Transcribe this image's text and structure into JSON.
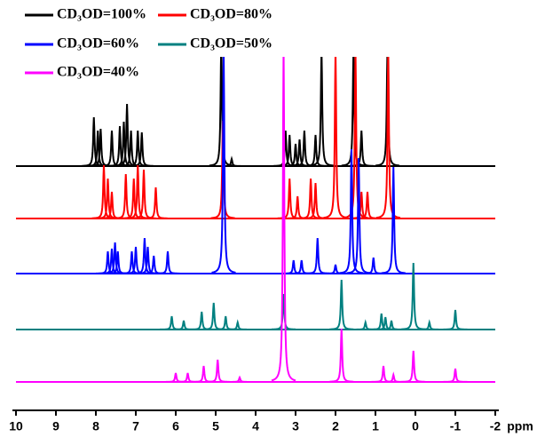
{
  "chart_data": {
    "type": "nmr-stack",
    "x_label": "ppm",
    "xlim": [
      10,
      -2
    ],
    "xticks": [
      10,
      9,
      8,
      7,
      6,
      5,
      4,
      3,
      2,
      1,
      0,
      -1,
      -2
    ],
    "series": [
      {
        "name": "CD₃OD=100%",
        "color": "#000000",
        "x": [
          8.05,
          7.95,
          7.88,
          7.6,
          7.4,
          7.3,
          7.22,
          7.12,
          6.95,
          6.85,
          4.86,
          4.6,
          3.25,
          3.15,
          3.0,
          2.9,
          2.78,
          2.5,
          2.35,
          1.55,
          1.35,
          0.7
        ],
        "values": [
          55,
          40,
          42,
          40,
          45,
          50,
          70,
          40,
          40,
          38,
          140,
          8,
          40,
          35,
          25,
          30,
          40,
          35,
          130,
          130,
          40,
          130
        ]
      },
      {
        "name": "CD₃OD=80%",
        "color": "#ff0000",
        "x": [
          7.8,
          7.7,
          7.6,
          7.25,
          7.05,
          6.95,
          6.8,
          6.5,
          4.82,
          3.15,
          2.95,
          2.62,
          2.5,
          2.0,
          1.5,
          1.35,
          1.2,
          0.68
        ],
        "values": [
          60,
          45,
          30,
          50,
          45,
          60,
          55,
          35,
          110,
          45,
          25,
          45,
          40,
          190,
          190,
          30,
          30,
          190
        ]
      },
      {
        "name": "CD₃OD=60%",
        "color": "#0000ff",
        "x": [
          7.7,
          7.6,
          7.52,
          7.45,
          7.1,
          7.0,
          6.78,
          6.7,
          6.55,
          6.2,
          4.8,
          3.05,
          2.85,
          2.45,
          2.0,
          1.6,
          1.42,
          1.05,
          0.55
        ],
        "values": [
          25,
          28,
          35,
          25,
          25,
          30,
          40,
          30,
          20,
          25,
          250,
          15,
          15,
          40,
          10,
          140,
          130,
          18,
          120
        ]
      },
      {
        "name": "CD₃OD=50%",
        "color": "#008080",
        "x": [
          6.1,
          5.8,
          5.35,
          5.05,
          4.75,
          4.45,
          3.3,
          1.85,
          1.25,
          0.85,
          0.75,
          0.6,
          0.05,
          -0.35,
          -1.0
        ],
        "values": [
          15,
          10,
          20,
          30,
          15,
          8,
          40,
          56,
          8,
          18,
          14,
          10,
          75,
          8,
          22
        ]
      },
      {
        "name": "CD₃OD=40%",
        "color": "#ff00ff",
        "x": [
          6.0,
          5.7,
          5.3,
          4.95,
          4.4,
          3.3,
          1.85,
          0.8,
          0.55,
          0.05,
          -1.0
        ],
        "values": [
          10,
          10,
          18,
          25,
          5,
          380,
          60,
          18,
          8,
          35,
          15
        ]
      }
    ]
  }
}
